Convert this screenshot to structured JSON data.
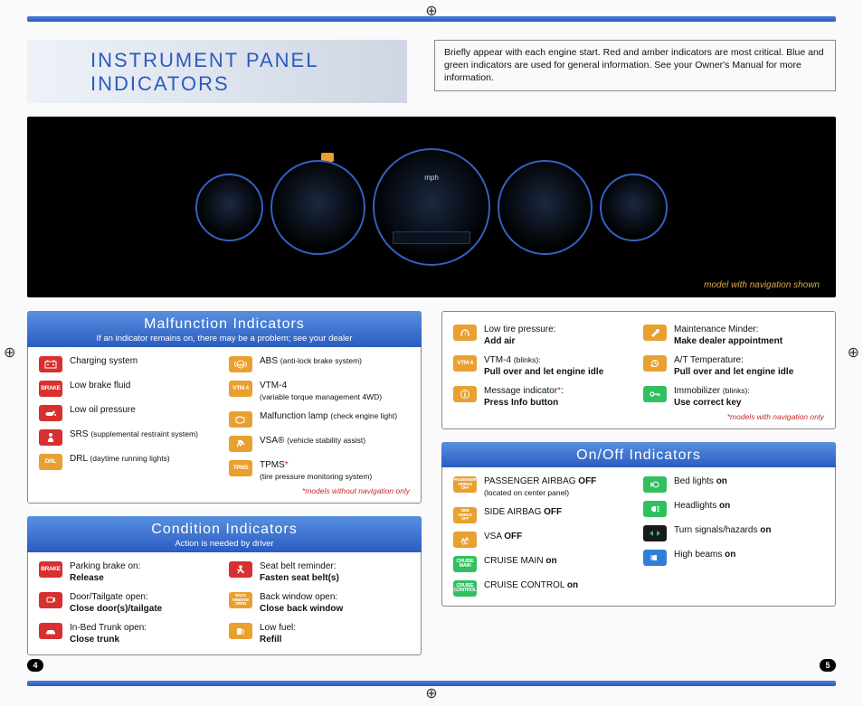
{
  "header": {
    "title": "INSTRUMENT PANEL INDICATORS",
    "intro": "Briefly appear with each engine start. Red and amber indicators are most critical. Blue and green indicators are used for general information. See your Owner's Manual for more information."
  },
  "photo_caption": "model with navigation shown",
  "colors": {
    "red": "#d83030",
    "amber": "#e8a030",
    "black": "#1a1a1a",
    "green": "#30c060",
    "blue": "#3080d8",
    "teal": "#30c0b0"
  },
  "panels": {
    "malfunction": {
      "title": "Malfunction Indicators",
      "subtitle": "If an indicator remains on, there may be a problem; see your dealer",
      "left": [
        {
          "icon_bg": "#d83030",
          "glyph": "battery",
          "text": "Charging system"
        },
        {
          "icon_bg": "#d83030",
          "glyph": "text",
          "glyph_text": "BRAKE",
          "text": "Low brake fluid"
        },
        {
          "icon_bg": "#d83030",
          "glyph": "oil",
          "text": "Low oil pressure"
        },
        {
          "icon_bg": "#d83030",
          "glyph": "person",
          "text": "SRS",
          "sub": "(supplemental restraint system)"
        },
        {
          "icon_bg": "#e8a030",
          "glyph": "text",
          "glyph_text": "DRL",
          "text": "DRL",
          "sub": "(daytime running lights)"
        }
      ],
      "right": [
        {
          "icon_bg": "#e8a030",
          "glyph": "abs",
          "text": "ABS",
          "sub": "(anti-lock brake system)"
        },
        {
          "icon_bg": "#e8a030",
          "glyph": "text",
          "glyph_text": "VTM 4",
          "text": "VTM-4",
          "sub2": "(variable torque management 4WD)"
        },
        {
          "icon_bg": "#e8a030",
          "glyph": "engine",
          "text": "Malfunction lamp",
          "sub": "(check engine light)"
        },
        {
          "icon_bg": "#e8a030",
          "glyph": "skid",
          "text": "VSA®",
          "sub": "(vehicle stability assist)"
        },
        {
          "icon_bg": "#e8a030",
          "glyph": "text",
          "glyph_text": "TPMS",
          "text": "TPMS",
          "star": "*",
          "sub2": "(tire pressure monitoring system)"
        }
      ],
      "footnote": "*models without navigation only"
    },
    "condition": {
      "title": "Condition Indicators",
      "subtitle": "Action is needed by driver",
      "left": [
        {
          "icon_bg": "#d83030",
          "glyph": "text",
          "glyph_text": "BRAKE",
          "text": "Parking brake on:",
          "bold": "Release"
        },
        {
          "icon_bg": "#d83030",
          "glyph": "door",
          "text": "Door/Tailgate open:",
          "bold": "Close door(s)/tailgate"
        },
        {
          "icon_bg": "#d83030",
          "glyph": "trunk",
          "text": "In-Bed Trunk open:",
          "bold": "Close trunk"
        }
      ],
      "right": [
        {
          "icon_bg": "#d83030",
          "glyph": "seatbelt",
          "text": "Seat belt reminder:",
          "bold": "Fasten seat belt(s)"
        },
        {
          "icon_bg": "#e8a030",
          "glyph": "text",
          "glyph_text": "BACK\nWINDOW\nOPEN",
          "text": "Back window open:",
          "bold": "Close back window"
        },
        {
          "icon_bg": "#e8a030",
          "glyph": "fuel",
          "text": "Low fuel:",
          "bold": "Refill"
        }
      ]
    },
    "misc": {
      "left": [
        {
          "icon_bg": "#e8a030",
          "glyph": "tire",
          "text": "Low tire pressure:",
          "bold": "Add air"
        },
        {
          "icon_bg": "#e8a030",
          "glyph": "text",
          "glyph_text": "VTM 4",
          "text": "VTM-4",
          "sub": "(blinks):",
          "bold": "Pull over and let engine idle"
        },
        {
          "icon_bg": "#e8a030",
          "glyph": "info",
          "text": "Message indicator",
          "star": "*",
          "post": ":",
          "bold": "Press Info button"
        }
      ],
      "right": [
        {
          "icon_bg": "#e8a030",
          "glyph": "wrench",
          "text": "Maintenance Minder:",
          "bold": "Make dealer appointment"
        },
        {
          "icon_bg": "#e8a030",
          "glyph": "temp",
          "text": "A/T Temperature:",
          "bold": "Pull over and let engine idle"
        },
        {
          "icon_bg": "#30c060",
          "glyph": "key",
          "text": "Immobilizer",
          "sub": "(blinks):",
          "bold": "Use correct key"
        }
      ],
      "footnote": "*models with navigation only"
    },
    "onoff": {
      "title": "On/Off Indicators",
      "left": [
        {
          "icon_bg": "#e8a030",
          "glyph": "text",
          "glyph_text": "PASSENGER\nAIRBAG\nOFF",
          "html": "PASSENGER AIRBAG <b>OFF</b>",
          "sub2": "(located on center panel)"
        },
        {
          "icon_bg": "#e8a030",
          "glyph": "text",
          "glyph_text": "SIDE\nAIRBAG\nOFF",
          "html": "SIDE AIRBAG <b>OFF</b>"
        },
        {
          "icon_bg": "#e8a030",
          "glyph": "vsaoff",
          "html": "VSA <b>OFF</b>"
        },
        {
          "icon_bg": "#30c060",
          "glyph": "text",
          "glyph_text": "CRUISE\nMAIN",
          "html": "CRUISE MAIN <b>on</b>"
        },
        {
          "icon_bg": "#30c060",
          "glyph": "text",
          "glyph_text": "CRUISE\nCONTROL",
          "html": "CRUISE CONTROL <b>on</b>"
        }
      ],
      "right": [
        {
          "icon_bg": "#30c060",
          "glyph": "bedlight",
          "html": "Bed lights <b>on</b>"
        },
        {
          "icon_bg": "#30c060",
          "glyph": "headlight",
          "html": "Headlights <b>on</b>"
        },
        {
          "icon_bg": "#30c060",
          "glyph": "turn",
          "html": "Turn signals/hazards <b>on</b>"
        },
        {
          "icon_bg": "#3080d8",
          "glyph": "highbeam",
          "html": "High beams <b>on</b>"
        }
      ]
    }
  },
  "page_left": "4",
  "page_right": "5"
}
